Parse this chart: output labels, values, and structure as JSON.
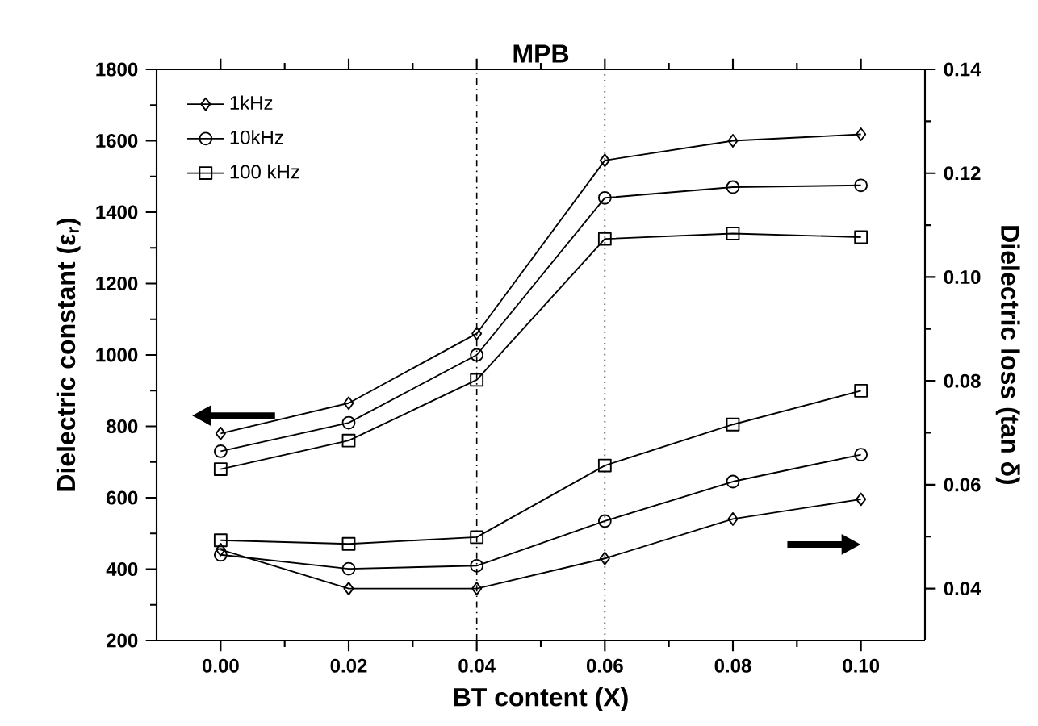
{
  "chart_data": {
    "type": "line",
    "xlabel": "BT content (X)",
    "ylabel": "Dielectric constant (ε$_{r}$)",
    "y2label": "Dielectric loss (tan δ)",
    "x": [
      0.0,
      0.02,
      0.04,
      0.06,
      0.08,
      0.1
    ],
    "xlim": [
      -0.01,
      0.11
    ],
    "xticks": [
      {
        "value": 0.0,
        "label": "0.00"
      },
      0.02,
      0.04,
      0.06,
      0.08,
      {
        "value": 0.1,
        "label": "0.10"
      }
    ],
    "ylim": [
      200,
      1800
    ],
    "yticks": [
      200,
      400,
      600,
      800,
      1000,
      1200,
      1400,
      1600,
      1800
    ],
    "y2lim": [
      0.03,
      0.14
    ],
    "y2ticks": [
      0.04,
      0.06,
      0.08,
      {
        "value": 0.1,
        "label": "0.10"
      },
      0.12,
      0.14
    ],
    "series": [
      {
        "name": "1kHz",
        "color": "#000000",
        "marker": "diamond",
        "values": [
          780,
          865,
          1060,
          1545,
          1600,
          1618
        ]
      },
      {
        "name": "10kHz",
        "color": "#000000",
        "marker": "circle",
        "values": [
          730,
          810,
          1000,
          1440,
          1470,
          1475
        ]
      },
      {
        "name": "100 kHz",
        "color": "#000000",
        "marker": "square",
        "values": [
          680,
          760,
          930,
          1325,
          1340,
          1330
        ]
      },
      {
        "color": "#000000",
        "marker": "diamond",
        "axis": "y2",
        "values": [
          0.0475,
          0.04,
          0.04,
          0.0458,
          0.0534,
          0.0572
        ]
      },
      {
        "color": "#000000",
        "marker": "circle",
        "axis": "y2",
        "values": [
          0.0465,
          0.0438,
          0.0444,
          0.053,
          0.0606,
          0.0658
        ]
      },
      {
        "color": "#000000",
        "marker": "square",
        "axis": "y2",
        "values": [
          0.0493,
          0.0486,
          0.0499,
          0.0637,
          0.0716,
          0.0781
        ]
      }
    ],
    "ref_lines": [
      {
        "axis": "x",
        "value": 0.04,
        "line_style": "dashdot"
      },
      {
        "axis": "x",
        "value": 0.06,
        "line_style": "dotted"
      }
    ],
    "annotations": [
      "MPB"
    ],
    "legend": "top left",
    "line_style": "solid"
  }
}
